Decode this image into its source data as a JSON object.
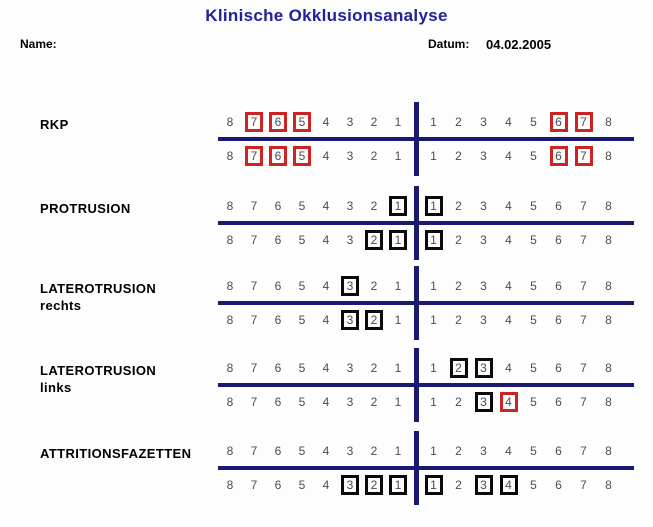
{
  "title": "Klinische Okklusionsanalyse",
  "fields": {
    "name_label": "Name:",
    "datum_label": "Datum:",
    "datum_value": "04.02.2005"
  },
  "teeth": {
    "left": [
      "8",
      "7",
      "6",
      "5",
      "4",
      "3",
      "2",
      "1"
    ],
    "right": [
      "1",
      "2",
      "3",
      "4",
      "5",
      "6",
      "7",
      "8"
    ]
  },
  "colors": {
    "title_blue": "#22219b",
    "line_navy": "#1a1a70",
    "mark_red": "#cc2424",
    "mark_black": "#0a0a0a",
    "number_gray": "#4d4d4d"
  },
  "sections": [
    {
      "label": "RKP",
      "sublabel": "",
      "rows": [
        {
          "name": "upper",
          "marks": {
            "left": {
              "7": "red",
              "6": "red",
              "5": "red"
            },
            "right": {
              "6": "red",
              "7": "red"
            }
          }
        },
        {
          "name": "lower",
          "marks": {
            "left": {
              "7": "red",
              "6": "red",
              "5": "red"
            },
            "right": {
              "6": "red",
              "7": "red"
            }
          }
        }
      ]
    },
    {
      "label": "PROTRUSION",
      "sublabel": "",
      "rows": [
        {
          "name": "upper",
          "marks": {
            "left": {
              "1": "black"
            },
            "right": {
              "1": "black"
            }
          }
        },
        {
          "name": "lower",
          "marks": {
            "left": {
              "2": "black",
              "1": "black"
            },
            "right": {
              "1": "black"
            }
          }
        }
      ]
    },
    {
      "label": "LATEROTRUSION",
      "sublabel": "rechts",
      "rows": [
        {
          "name": "upper",
          "marks": {
            "left": {
              "3": "black"
            },
            "right": {}
          }
        },
        {
          "name": "lower",
          "marks": {
            "left": {
              "3": "black",
              "2": "black"
            },
            "right": {}
          }
        }
      ]
    },
    {
      "label": "LATEROTRUSION",
      "sublabel": "links",
      "rows": [
        {
          "name": "upper",
          "marks": {
            "left": {},
            "right": {
              "2": "black",
              "3": "black"
            }
          }
        },
        {
          "name": "lower",
          "marks": {
            "left": {},
            "right": {
              "3": "black",
              "4": "red"
            }
          }
        }
      ]
    },
    {
      "label": "ATTRITIONSFAZETTEN",
      "sublabel": "",
      "rows": [
        {
          "name": "upper",
          "marks": {
            "left": {},
            "right": {}
          }
        },
        {
          "name": "lower",
          "marks": {
            "left": {
              "3": "black",
              "2": "black",
              "1": "black"
            },
            "right": {
              "1": "black",
              "3": "black",
              "4": "black"
            }
          }
        }
      ]
    }
  ]
}
